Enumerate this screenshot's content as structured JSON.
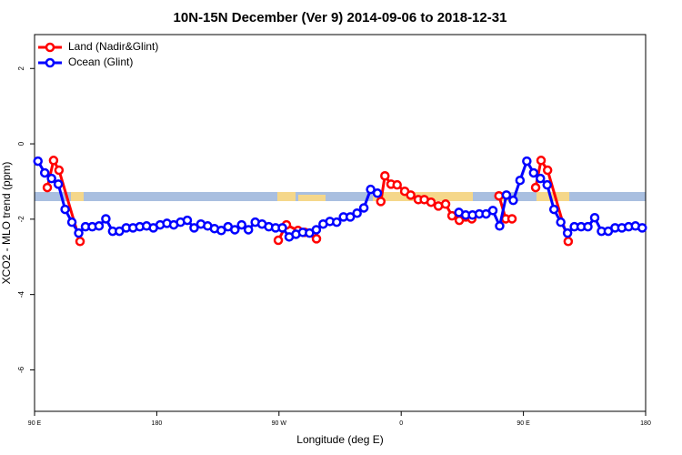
{
  "chart_data": {
    "type": "line",
    "title": "10N-15N December (Ver 9)   2014-09-06 to 2018-12-31",
    "x_label": "Longitude (deg E)",
    "y_label": "XCO2 - MLO trend (ppm)",
    "xlim": [
      90,
      540
    ],
    "ylim": [
      -7.1,
      2.9
    ],
    "xticks": [
      {
        "value": 90,
        "label": "90 E"
      },
      {
        "value": 180,
        "label": "180"
      },
      {
        "value": 270,
        "label": "90 W"
      },
      {
        "value": 360,
        "label": "0"
      },
      {
        "value": 450,
        "label": "90 E"
      },
      {
        "value": 540,
        "label": "180"
      }
    ],
    "yticks": [
      -6,
      -4,
      -2,
      0,
      2
    ],
    "legend": "top-left",
    "series": [
      {
        "name": "Land (Nadir&Glint)",
        "color": "#ff0000",
        "x": [
          99.4,
          104,
          108,
          123.5,
          null,
          269.5,
          275.5,
          284,
          289,
          297.6,
          null,
          345,
          348,
          352.5,
          357,
          362.6,
          367,
          372.6,
          377,
          382,
          387.4,
          392.7,
          397.4,
          402.8,
          407.5,
          412,
          null,
          432,
          437,
          441.6,
          null,
          459,
          463,
          467.8,
          483
        ],
        "values": [
          -1.16,
          -0.44,
          -0.7,
          -2.59,
          null,
          -2.56,
          -2.15,
          -2.3,
          -2.35,
          -2.52,
          null,
          -1.53,
          -0.85,
          -1.07,
          -1.09,
          -1.26,
          -1.36,
          -1.48,
          -1.48,
          -1.55,
          -1.65,
          -1.6,
          -1.91,
          -2.03,
          -1.94,
          -1.99,
          null,
          -1.38,
          -1.99,
          -1.99,
          null,
          -1.16,
          -0.44,
          -0.7,
          -2.59
        ]
      },
      {
        "name": "Ocean (Glint)",
        "color": "#0000ff",
        "x": [
          92.5,
          97.5,
          102.5,
          107.5,
          112.5,
          117.5,
          122.5,
          127.5,
          132.5,
          137.5,
          142.5,
          147.5,
          152.5,
          157.5,
          162.5,
          167.5,
          172.5,
          177.5,
          182.5,
          187.5,
          192.5,
          197.5,
          202.5,
          207.5,
          212.5,
          217.5,
          222.5,
          227.5,
          232.5,
          237.5,
          242.5,
          247.5,
          252.5,
          257.5,
          262.5,
          267.5,
          272.5,
          277.5,
          282.5,
          287.5,
          292.5,
          297.5,
          302.5,
          307.5,
          312.5,
          317.5,
          322.5,
          327.5,
          332.5,
          337.5,
          342.5,
          347.5,
          352.5,
          357.5,
          362.5,
          367.5,
          372.5,
          377.5,
          382.5,
          387.5,
          392.5,
          397.5,
          402.5,
          407.5,
          412.5,
          417.5,
          422.5,
          427.5,
          432.5,
          437.5,
          442.5,
          447.5,
          452.5,
          457.5,
          462.5,
          467.5,
          472.5,
          477.5,
          482.5,
          487.5,
          492.5,
          497.5,
          502.5,
          507.5,
          512.5,
          517.5,
          522.5,
          527.5,
          532.5,
          537.5
        ],
        "values": [
          -0.46,
          -0.77,
          -0.92,
          -1.07,
          -1.74,
          -2.08,
          -2.37,
          -2.2,
          -2.2,
          -2.18,
          -1.99,
          -2.32,
          -2.32,
          -2.23,
          -2.23,
          -2.2,
          -2.18,
          -2.23,
          -2.15,
          -2.11,
          -2.15,
          -2.08,
          -2.03,
          -2.23,
          -2.13,
          -2.18,
          -2.25,
          -2.3,
          -2.2,
          -2.28,
          -2.15,
          -2.28,
          -2.08,
          -2.13,
          -2.2,
          -2.23,
          -2.23,
          -2.47,
          -2.4,
          -2.35,
          -2.37,
          -2.28,
          -2.13,
          -2.06,
          -2.08,
          -1.94,
          -1.94,
          -1.84,
          -1.7,
          -1.21,
          -1.31,
          null,
          null,
          null,
          null,
          null,
          null,
          null,
          null,
          null,
          null,
          null,
          -1.82,
          -1.89,
          -1.89,
          -1.86,
          -1.86,
          -1.77,
          -2.18,
          -1.36,
          -1.5,
          -0.97,
          -0.46,
          -0.77,
          -0.92,
          -1.09,
          -1.74,
          -2.08,
          -2.37,
          -2.2,
          -2.2,
          -2.2,
          -1.96,
          -2.32,
          -2.32,
          -2.23,
          -2.23,
          -2.2,
          -2.18,
          -2.23
        ]
      }
    ]
  }
}
